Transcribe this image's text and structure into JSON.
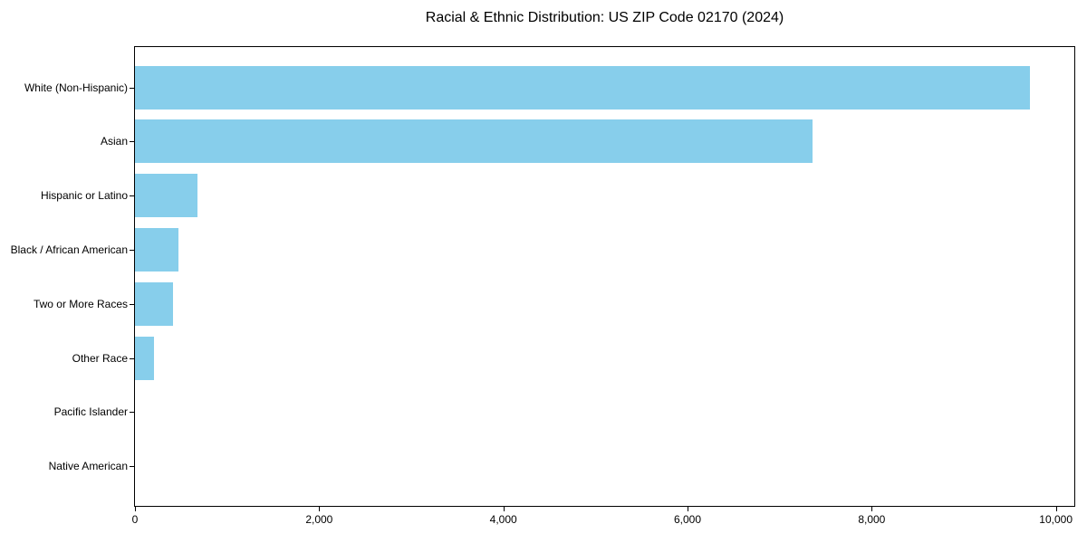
{
  "title": "Racial & Ethnic Distribution: US ZIP Code 02170 (2024)",
  "chart_data": {
    "type": "bar",
    "orientation": "horizontal",
    "title": "Racial & Ethnic Distribution: US ZIP Code 02170 (2024)",
    "categories": [
      "White (Non-Hispanic)",
      "Asian",
      "Hispanic or Latino",
      "Black / African American",
      "Two or More Races",
      "Other Race",
      "Pacific Islander",
      "Native American"
    ],
    "values": [
      9715,
      7355,
      675,
      470,
      410,
      210,
      0,
      0
    ],
    "xlabel": "",
    "ylabel": "",
    "xlim": [
      0,
      10200
    ],
    "x_ticks": [
      0,
      2000,
      4000,
      6000,
      8000,
      10000
    ],
    "x_tick_labels": [
      "0",
      "2,000",
      "4,000",
      "6,000",
      "8,000",
      "10,000"
    ],
    "grid": false,
    "legend_position": "none",
    "bar_color": "#87CEEB",
    "axis_color": "#000000",
    "background_color": "#ffffff"
  }
}
